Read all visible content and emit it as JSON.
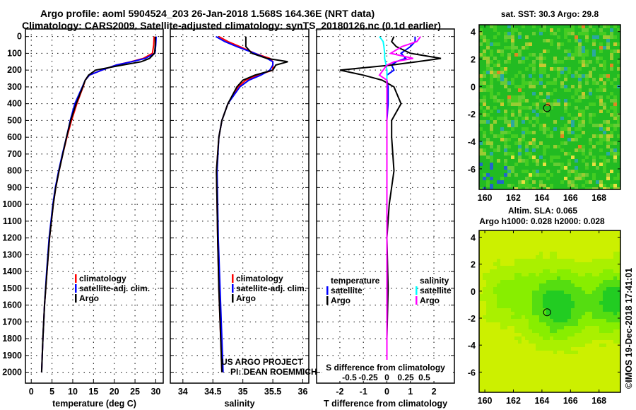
{
  "title_line1": "Argo profile: aoml 5904524_203 26-Jan-2018 1.568S 164.36E (NRT data)",
  "title_line2": "Climatology: CARS2009. Satellite-adjusted climatology: synTS_20180126.nc (0.1d earlier)",
  "colors": {
    "climatology": "#ff0000",
    "satellite": "#0000ff",
    "argo": "#000000",
    "sal_satellite": "#00ffff",
    "sal_argo": "#ff00ff"
  },
  "depth_ticks": [
    0,
    100,
    200,
    300,
    400,
    500,
    600,
    700,
    800,
    900,
    1000,
    1100,
    1200,
    1300,
    1400,
    1500,
    1600,
    1700,
    1800,
    1900,
    2000
  ],
  "chart_data": [
    {
      "type": "line",
      "name": "temperature",
      "xlabel": "temperature (deg C)",
      "ylabel": "depth",
      "xlim": [
        -1.4,
        31.8
      ],
      "ylim": [
        2065,
        -45
      ],
      "xticks": [
        0,
        5,
        10,
        15,
        20,
        25,
        30
      ],
      "depth": [
        0,
        50,
        100,
        130,
        150,
        170,
        200,
        230,
        260,
        300,
        400,
        500,
        600,
        700,
        800,
        900,
        1000,
        1200,
        1400,
        1600,
        1800,
        2000
      ],
      "series": [
        {
          "name": "climatology",
          "legend": "climatology",
          "values": [
            29.6,
            29.5,
            29.2,
            27,
            24,
            20.5,
            17,
            14,
            13,
            12.5,
            11,
            9.7,
            8.6,
            7.6,
            6.7,
            5.9,
            5.3,
            4.4,
            3.8,
            3.2,
            2.8,
            2.5
          ]
        },
        {
          "name": "satellite-adj. clim.",
          "legend": "satellite-adj. clim.",
          "values": [
            30.1,
            30,
            29.8,
            27.5,
            24.2,
            20.5,
            17,
            14,
            13,
            12.3,
            10.5,
            9.4,
            8.5,
            7.5,
            6.6,
            5.8,
            5.2,
            4.3,
            3.7,
            3.2,
            2.8,
            2.5
          ]
        },
        {
          "name": "Argo",
          "legend": "Argo",
          "values": [
            29.9,
            29.9,
            29.7,
            28.5,
            26.5,
            22,
            15.5,
            13.8,
            13,
            12.4,
            10.8,
            9.5,
            8.5,
            7.6,
            6.7,
            5.9,
            5.3,
            4.4,
            3.8,
            3.2,
            2.8,
            2.5
          ]
        }
      ]
    },
    {
      "type": "line",
      "name": "salinity",
      "xlabel": "salinity",
      "xlim": [
        33.79,
        36.1
      ],
      "ylim": [
        2065,
        -45
      ],
      "xticks": [
        34,
        34.5,
        35,
        35.5,
        36
      ],
      "depth": [
        0,
        30,
        60,
        100,
        130,
        150,
        170,
        200,
        230,
        260,
        300,
        400,
        500,
        600,
        800,
        1000,
        1200,
        1500,
        1800,
        2000
      ],
      "series": [
        {
          "name": "climatology",
          "legend": "climatology",
          "values": [
            34.6,
            34.75,
            34.95,
            35.2,
            35.45,
            35.5,
            35.5,
            35.5,
            35.25,
            35.05,
            34.92,
            34.75,
            34.65,
            34.6,
            34.56,
            34.57,
            34.58,
            34.6,
            34.63,
            34.65
          ]
        },
        {
          "name": "satellite-adj. clim.",
          "legend": "satellite-adj. clim.",
          "values": [
            34.55,
            34.7,
            34.9,
            35.2,
            35.4,
            35.5,
            35.5,
            35.45,
            35.3,
            35.1,
            34.95,
            34.75,
            34.65,
            34.6,
            34.57,
            34.58,
            34.59,
            34.62,
            34.65,
            34.67
          ]
        },
        {
          "name": "Argo",
          "legend": "Argo",
          "values": [
            35.05,
            35.05,
            35.05,
            35.15,
            35.4,
            35.75,
            35.55,
            35.5,
            35.2,
            35.0,
            34.9,
            34.75,
            34.65,
            34.6,
            34.56,
            34.57,
            34.58,
            34.6,
            34.63,
            34.65
          ]
        }
      ],
      "annotations": [
        "US ARGO PROJECT",
        "PI: DEAN ROEMMICH"
      ]
    },
    {
      "type": "line",
      "name": "difference",
      "xlabel": "T difference from climatology",
      "x2label": "S difference from climatology",
      "xlim": [
        -2.99,
        2.87
      ],
      "ylim": [
        2065,
        -45
      ],
      "xticks": [
        -2,
        -1,
        0,
        1,
        2
      ],
      "x2ticks": [
        -0.5,
        -0.25,
        0,
        0.25,
        0.5
      ],
      "x2ticklabels": [
        "-0.5",
        "-0.25",
        "0",
        "0.25",
        "0.5"
      ],
      "legend_headers": [
        "temperature",
        "salinity"
      ],
      "depth": [
        0,
        30,
        60,
        100,
        130,
        150,
        170,
        200,
        230,
        260,
        300,
        400,
        500,
        600,
        800,
        1000,
        1200,
        1500,
        1800,
        2000
      ],
      "series": [
        {
          "name": "temperature satellite",
          "legend": "satellite",
          "axis": "T",
          "values": [
            1.2,
            1.2,
            1.0,
            0.6,
            0.8,
            0.4,
            0.2,
            0.3,
            0.0,
            0.0,
            0.05,
            0.05,
            0.0,
            0.0,
            0.0,
            0.0,
            0.0,
            0.0,
            0.0,
            0.0
          ]
        },
        {
          "name": "temperature Argo",
          "legend": "Argo",
          "axis": "T",
          "values": [
            0.3,
            0.2,
            0.4,
            1.0,
            2.3,
            1.3,
            0.2,
            -2.0,
            -1.0,
            -0.2,
            0.3,
            0.6,
            0.2,
            0.2,
            0.3,
            0.1,
            0.0,
            0.05,
            0.0,
            0.0
          ]
        },
        {
          "name": "salinity satellite",
          "legend": "satellite",
          "axis": "S",
          "values": [
            -0.1,
            -0.05,
            -0.04,
            -0.03,
            -0.03,
            -0.02,
            -0.01,
            0.0,
            0.0,
            0.0,
            0.0,
            0.0,
            0.0,
            0.0,
            0.0,
            0.0,
            0.0,
            0.0,
            0.0,
            0.0
          ]
        },
        {
          "name": "salinity Argo",
          "legend": "Argo",
          "axis": "S",
          "values": [
            0.45,
            0.4,
            0.2,
            0.05,
            0.35,
            0.1,
            0.0,
            -0.05,
            -0.1,
            0.0,
            0.0,
            0.0,
            0.0,
            0.0,
            0.0,
            0.0,
            0.0,
            0.0,
            0.0,
            0.0
          ]
        }
      ]
    },
    {
      "type": "heatmap",
      "name": "sst-map",
      "title": "sat. SST: 30.3 Argo: 29.8",
      "xlim": [
        159.6,
        169.5
      ],
      "ylim": [
        -7.5,
        4.5
      ],
      "xticks": [
        160,
        162,
        164,
        166,
        168
      ],
      "yticks": [
        4,
        2,
        0,
        -2,
        -4,
        -6
      ],
      "marker": {
        "lon": 164.36,
        "lat": -1.568
      }
    },
    {
      "type": "heatmap",
      "name": "sla-map",
      "title": "Altim. SLA: 0.065",
      "subtitle": "Argo h1000: 0.028 h2000: 0.028",
      "xlim": [
        159.6,
        169.5
      ],
      "ylim": [
        -7.5,
        4.5
      ],
      "xticks": [
        160,
        162,
        164,
        166,
        168
      ],
      "yticks": [
        4,
        2,
        0,
        -2,
        -4,
        -6
      ],
      "marker": {
        "lon": 164.36,
        "lat": -1.568
      }
    }
  ],
  "credit": "©IMOS 19-Dec-2018 17:41:01"
}
